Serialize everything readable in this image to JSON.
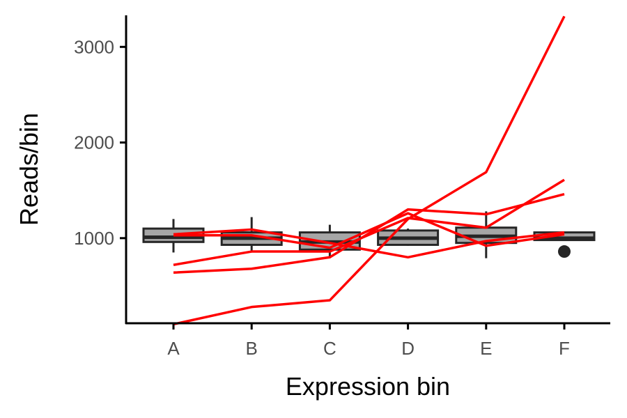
{
  "chart_data": {
    "type": "box",
    "xlabel": "Expression bin",
    "ylabel": "Reads/bin",
    "categories": [
      "A",
      "B",
      "C",
      "D",
      "E",
      "F"
    ],
    "ylim": [
      110,
      3330
    ],
    "y_ticks": [
      1000,
      2000,
      3000
    ],
    "y_tick_labels": [
      "1000",
      "2000",
      "3000"
    ],
    "grid": false,
    "legend": "none",
    "boxes": [
      {
        "category": "A",
        "whisker_low": 850,
        "q1": 960,
        "median": 1010,
        "q3": 1100,
        "whisker_high": 1200,
        "outliers": []
      },
      {
        "category": "B",
        "whisker_low": 870,
        "q1": 930,
        "median": 1000,
        "q3": 1060,
        "whisker_high": 1220,
        "outliers": []
      },
      {
        "category": "C",
        "whisker_low": 790,
        "q1": 880,
        "median": 960,
        "q3": 1060,
        "whisker_high": 1140,
        "outliers": []
      },
      {
        "category": "D",
        "whisker_low": 920,
        "q1": 930,
        "median": 1000,
        "q3": 1080,
        "whisker_high": 1100,
        "outliers": []
      },
      {
        "category": "E",
        "whisker_low": 790,
        "q1": 950,
        "median": 1020,
        "q3": 1110,
        "whisker_high": 1280,
        "outliers": []
      },
      {
        "category": "F",
        "whisker_low": 980,
        "q1": 980,
        "median": 1000,
        "q3": 1060,
        "whisker_high": 1060,
        "outliers": [
          860
        ]
      }
    ],
    "series": [
      {
        "values": [
          100,
          280,
          350,
          1200,
          1690,
          3320
        ]
      },
      {
        "values": [
          640,
          680,
          800,
          1300,
          1250,
          1460
        ]
      },
      {
        "values": [
          720,
          860,
          860,
          1210,
          1110,
          1610
        ]
      },
      {
        "values": [
          1040,
          1090,
          950,
          800,
          970,
          1060
        ]
      },
      {
        "values": [
          1030,
          1030,
          900,
          1260,
          920,
          1040
        ]
      }
    ],
    "colors": {
      "line": "#ff0000",
      "box_fill_light": "#a6a6a6",
      "box_fill_dark": "#333333",
      "box_stroke": "#262626",
      "axis": "#000000"
    }
  }
}
